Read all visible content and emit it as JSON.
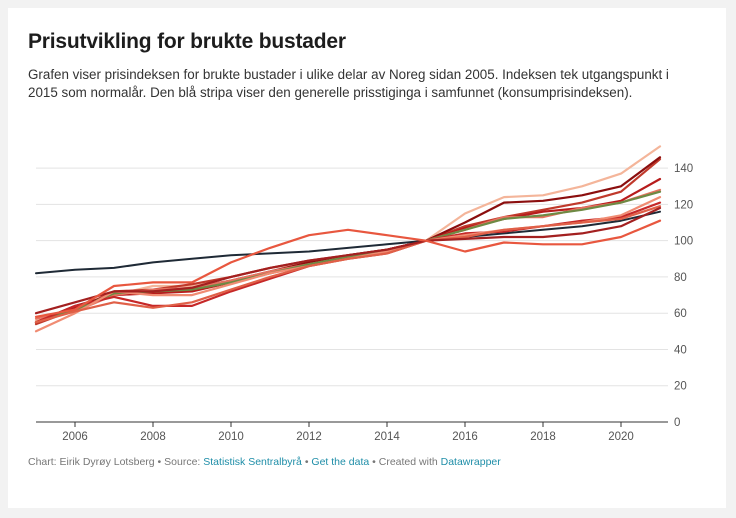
{
  "title": "Prisutvikling for brukte bustader",
  "subtitle": "Grafen viser prisindeksen for brukte bustader i ulike delar av Noreg sidan 2005. Indeksen tek utgangspunkt i 2015 som normalår. Den blå stripa viser den generelle prisstiginga i samfunnet (konsumprisindeksen).",
  "footer": {
    "chart_label": "Chart: Eirik Dyrøy Lotsberg",
    "source_prefix": "Source:",
    "source_link": "Statistisk Sentralbyrå",
    "data_link": "Get the data",
    "created_prefix": "Created with",
    "created_link": "Datawrapper",
    "separator": "•"
  },
  "chart_data": {
    "type": "line",
    "title": "Prisutvikling for brukte bustader",
    "xlabel": "",
    "ylabel": "",
    "xlim": [
      2005,
      2021
    ],
    "ylim": [
      0,
      150
    ],
    "x_ticks": [
      2006,
      2008,
      2010,
      2012,
      2014,
      2016,
      2018,
      2020
    ],
    "y_ticks": [
      0,
      20,
      40,
      60,
      80,
      100,
      120,
      140
    ],
    "y_axis_position": "right",
    "grid": true,
    "legend": "none",
    "x": [
      2005,
      2006,
      2007,
      2008,
      2009,
      2010,
      2011,
      2012,
      2013,
      2014,
      2015,
      2016,
      2017,
      2018,
      2019,
      2020,
      2021
    ],
    "series": [
      {
        "color": "#f4b59a",
        "values": [
          56,
          62,
          70,
          75,
          75,
          80,
          85,
          88,
          91,
          95,
          100,
          115,
          124,
          125,
          130,
          137,
          152
        ]
      },
      {
        "color": "#c0392b",
        "values": [
          54,
          62,
          72,
          73,
          76,
          80,
          85,
          89,
          92,
          95,
          100,
          108,
          113,
          117,
          121,
          127,
          145
        ]
      },
      {
        "color": "#8b0e0e",
        "values": [
          55,
          64,
          70,
          72,
          74,
          78,
          83,
          88,
          92,
          95,
          100,
          110,
          121,
          122,
          125,
          130,
          146
        ]
      },
      {
        "color": "#b71c1c",
        "values": [
          55,
          63,
          70,
          71,
          72,
          77,
          82,
          87,
          91,
          95,
          100,
          107,
          112,
          116,
          118,
          122,
          134
        ]
      },
      {
        "color": "#e57360",
        "values": [
          57,
          61,
          70,
          73,
          74,
          78,
          83,
          87,
          91,
          94,
          100,
          106,
          113,
          113,
          118,
          121,
          128
        ]
      },
      {
        "color": "#6e8a44",
        "values": [
          55,
          62,
          71,
          72,
          73,
          77,
          82,
          87,
          91,
          94,
          100,
          106,
          112,
          114,
          117,
          121,
          127
        ]
      },
      {
        "color": "#1f2a36",
        "values": [
          82,
          84,
          85,
          88,
          90,
          92,
          93,
          94,
          96,
          98,
          100,
          102,
          104,
          106,
          108,
          111,
          116
        ]
      },
      {
        "color": "#c62828",
        "values": [
          55,
          64,
          69,
          64,
          64,
          72,
          79,
          86,
          90,
          93,
          100,
          104,
          105,
          108,
          111,
          113,
          121
        ]
      },
      {
        "color": "#f08c73",
        "values": [
          50,
          60,
          72,
          70,
          70,
          76,
          82,
          86,
          90,
          94,
          100,
          103,
          106,
          108,
          110,
          114,
          124
        ]
      },
      {
        "color": "#e06048",
        "values": [
          55,
          61,
          66,
          63,
          66,
          73,
          80,
          86,
          90,
          93,
          100,
          102,
          106,
          108,
          110,
          112,
          119
        ]
      },
      {
        "color": "#a32020",
        "values": [
          60,
          66,
          72,
          72,
          74,
          80,
          85,
          89,
          92,
          95,
          100,
          101,
          102,
          102,
          104,
          108,
          118
        ]
      },
      {
        "color": "#e8573f",
        "values": [
          58,
          62,
          75,
          77,
          77,
          88,
          96,
          103,
          106,
          103,
          100,
          94,
          99,
          98,
          98,
          102,
          111
        ]
      }
    ]
  }
}
